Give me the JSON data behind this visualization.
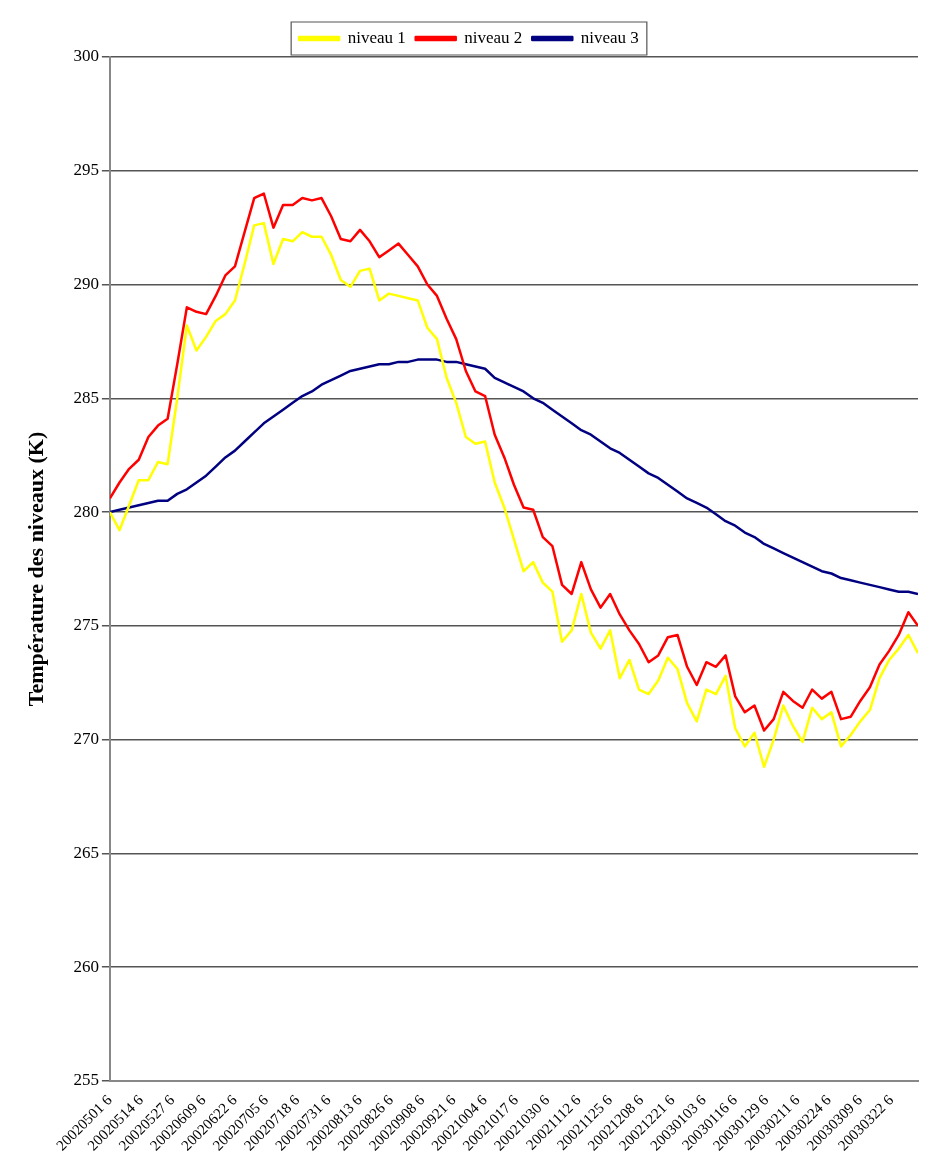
{
  "chart_data": {
    "type": "line",
    "ylabel": "Température des niveaux (K)",
    "x": [
      "2002-05-01",
      "2002-05-05",
      "2002-05-09",
      "2002-05-13",
      "2002-05-17",
      "2002-05-21",
      "2002-05-25",
      "2002-05-29",
      "2002-06-02",
      "2002-06-06",
      "2002-06-10",
      "2002-06-14",
      "2002-06-18",
      "2002-06-22",
      "2002-06-26",
      "2002-06-30",
      "2002-07-04",
      "2002-07-08",
      "2002-07-12",
      "2002-07-16",
      "2002-07-20",
      "2002-07-24",
      "2002-07-28",
      "2002-08-01",
      "2002-08-05",
      "2002-08-09",
      "2002-08-13",
      "2002-08-17",
      "2002-08-21",
      "2002-08-25",
      "2002-08-29",
      "2002-09-02",
      "2002-09-06",
      "2002-09-10",
      "2002-09-14",
      "2002-09-18",
      "2002-09-22",
      "2002-09-26",
      "2002-09-30",
      "2002-10-04",
      "2002-10-08",
      "2002-10-12",
      "2002-10-16",
      "2002-10-20",
      "2002-10-24",
      "2002-10-28",
      "2002-11-01",
      "2002-11-05",
      "2002-11-09",
      "2002-11-13",
      "2002-11-17",
      "2002-11-21",
      "2002-11-25",
      "2002-11-29",
      "2002-12-03",
      "2002-12-07",
      "2002-12-11",
      "2002-12-15",
      "2002-12-19",
      "2002-12-23",
      "2002-12-27",
      "2002-12-31",
      "2003-01-04",
      "2003-01-08",
      "2003-01-12",
      "2003-01-16",
      "2003-01-20",
      "2003-01-24",
      "2003-01-28",
      "2003-02-01",
      "2003-02-05",
      "2003-02-09",
      "2003-02-13",
      "2003-02-17",
      "2003-02-21",
      "2003-02-25",
      "2003-03-01",
      "2003-03-05",
      "2003-03-09",
      "2003-03-13",
      "2003-03-17",
      "2003-03-21",
      "2003-03-25",
      "2003-03-29",
      "2003-04-02"
    ],
    "series": [
      {
        "name": "niveau 1",
        "color": "#ffff00",
        "values": [
          280.0,
          279.2,
          280.3,
          281.4,
          281.4,
          282.2,
          282.1,
          285.0,
          288.2,
          287.1,
          287.7,
          288.4,
          288.7,
          289.3,
          290.9,
          292.6,
          292.7,
          290.9,
          292.0,
          291.9,
          292.3,
          292.1,
          292.1,
          291.3,
          290.2,
          289.9,
          290.6,
          290.7,
          289.3,
          289.6,
          289.5,
          289.4,
          289.3,
          288.1,
          287.6,
          285.9,
          284.8,
          283.3,
          283.0,
          283.1,
          281.3,
          280.2,
          278.8,
          277.4,
          277.8,
          276.9,
          276.5,
          274.3,
          274.8,
          276.4,
          274.7,
          274.0,
          274.8,
          272.7,
          273.5,
          272.2,
          272.0,
          272.6,
          273.6,
          273.1,
          271.6,
          270.8,
          272.2,
          272.0,
          272.8,
          270.5,
          269.7,
          270.3,
          268.8,
          270.0,
          271.5,
          270.6,
          269.9,
          271.4,
          270.9,
          271.2,
          269.7,
          270.2,
          270.8,
          271.3,
          272.7,
          273.5,
          274.0,
          274.6,
          273.8
        ]
      },
      {
        "name": "niveau 2",
        "color": "#ff0000",
        "values": [
          280.6,
          281.3,
          281.9,
          282.3,
          283.3,
          283.8,
          284.1,
          286.5,
          289.0,
          288.8,
          288.7,
          289.5,
          290.4,
          290.8,
          292.3,
          293.8,
          294.0,
          292.5,
          293.5,
          293.5,
          293.8,
          293.7,
          293.8,
          293.0,
          292.0,
          291.9,
          292.4,
          291.9,
          291.2,
          291.5,
          291.8,
          291.3,
          290.8,
          290.0,
          289.5,
          288.5,
          287.6,
          286.2,
          285.3,
          285.1,
          283.4,
          282.4,
          281.2,
          280.2,
          280.1,
          278.9,
          278.5,
          276.8,
          276.4,
          277.8,
          276.6,
          275.8,
          276.4,
          275.5,
          274.8,
          274.2,
          273.4,
          273.7,
          274.5,
          274.6,
          273.2,
          272.4,
          273.4,
          273.2,
          273.7,
          271.9,
          271.2,
          271.5,
          270.4,
          270.9,
          272.1,
          271.7,
          271.4,
          272.2,
          271.8,
          272.1,
          270.9,
          271.0,
          271.7,
          272.3,
          273.3,
          273.9,
          274.6,
          275.6,
          275.0
        ]
      },
      {
        "name": "niveau 3",
        "color": "#000080",
        "values": [
          280.0,
          280.1,
          280.2,
          280.3,
          280.4,
          280.5,
          280.5,
          280.8,
          281.0,
          281.3,
          281.6,
          282.0,
          282.4,
          282.7,
          283.1,
          283.5,
          283.9,
          284.2,
          284.5,
          284.8,
          285.1,
          285.3,
          285.6,
          285.8,
          286.0,
          286.2,
          286.3,
          286.4,
          286.5,
          286.5,
          286.6,
          286.6,
          286.7,
          286.7,
          286.7,
          286.6,
          286.6,
          286.5,
          286.4,
          286.3,
          285.9,
          285.7,
          285.5,
          285.3,
          285.0,
          284.8,
          284.5,
          284.2,
          283.9,
          283.6,
          283.4,
          283.1,
          282.8,
          282.6,
          282.3,
          282.0,
          281.7,
          281.5,
          281.2,
          280.9,
          280.6,
          280.4,
          280.2,
          279.9,
          279.6,
          279.4,
          279.1,
          278.9,
          278.6,
          278.4,
          278.2,
          278.0,
          277.8,
          277.6,
          277.4,
          277.3,
          277.1,
          277.0,
          276.9,
          276.8,
          276.7,
          276.6,
          276.5,
          276.5,
          276.4
        ]
      }
    ],
    "xlim": [
      "2002-05-01",
      "2003-04-02"
    ],
    "xticks": [
      {
        "value": "2002-05-01",
        "label": "20020501 6"
      },
      {
        "value": "2002-05-14",
        "label": "20020514 6"
      },
      {
        "value": "2002-05-27",
        "label": "20020527 6"
      },
      {
        "value": "2002-06-09",
        "label": "20020609 6"
      },
      {
        "value": "2002-06-22",
        "label": "20020622 6"
      },
      {
        "value": "2002-07-05",
        "label": "20020705 6"
      },
      {
        "value": "2002-07-18",
        "label": "20020718 6"
      },
      {
        "value": "2002-07-31",
        "label": "20020731 6"
      },
      {
        "value": "2002-08-13",
        "label": "20020813 6"
      },
      {
        "value": "2002-08-26",
        "label": "20020826 6"
      },
      {
        "value": "2002-09-08",
        "label": "20020908 6"
      },
      {
        "value": "2002-09-21",
        "label": "20020921 6"
      },
      {
        "value": "2002-10-04",
        "label": "20021004 6"
      },
      {
        "value": "2002-10-17",
        "label": "20021017 6"
      },
      {
        "value": "2002-10-30",
        "label": "20021030 6"
      },
      {
        "value": "2002-11-12",
        "label": "20021112 6"
      },
      {
        "value": "2002-11-25",
        "label": "20021125 6"
      },
      {
        "value": "2002-12-08",
        "label": "20021208 6"
      },
      {
        "value": "2002-12-21",
        "label": "20021221 6"
      },
      {
        "value": "2003-01-03",
        "label": "20030103 6"
      },
      {
        "value": "2003-01-16",
        "label": "20030116 6"
      },
      {
        "value": "2003-01-29",
        "label": "20030129 6"
      },
      {
        "value": "2003-02-11",
        "label": "20030211 6"
      },
      {
        "value": "2003-02-24",
        "label": "20030224 6"
      },
      {
        "value": "2003-03-09",
        "label": "20030309 6"
      },
      {
        "value": "2003-03-22",
        "label": "20030322 6"
      }
    ],
    "ylim": [
      255,
      300
    ],
    "yticks": [
      255,
      260,
      265,
      270,
      275,
      280,
      285,
      290,
      295,
      300
    ],
    "grid": "y",
    "legend": "top",
    "marker": "none",
    "line_style": "solid"
  }
}
